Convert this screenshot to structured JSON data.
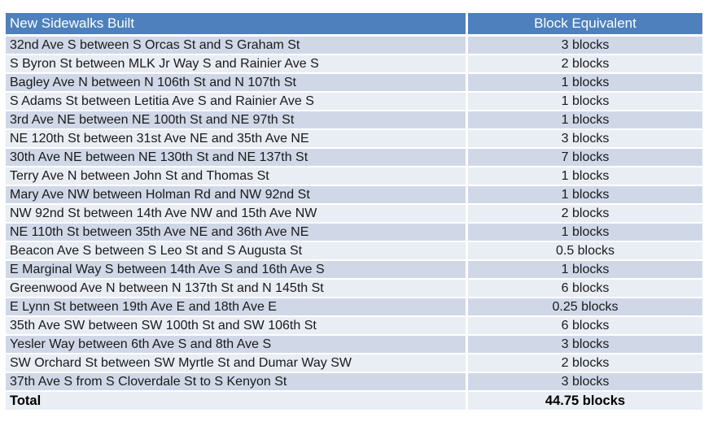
{
  "colors": {
    "header_bg": "#4D80BC",
    "row_odd_bg": "#D0D8E8",
    "row_even_bg": "#E9EDF4",
    "header_text": "#FFFFFF",
    "body_text": "#1A1A1A"
  },
  "chart_data": {
    "type": "table",
    "columns": [
      "New Sidewalks Built",
      "Block Equivalent"
    ],
    "rows": [
      [
        "32nd Ave S between S Orcas St and S Graham St",
        "3 blocks"
      ],
      [
        "S Byron St between MLK Jr Way S and Rainier Ave S",
        "2 blocks"
      ],
      [
        "Bagley Ave N between N 106th St and N 107th St",
        "1 blocks"
      ],
      [
        "S Adams St between Letitia Ave S and Rainier Ave S",
        "1 blocks"
      ],
      [
        "3rd Ave NE between NE 100th St and NE 97th St",
        "1 blocks"
      ],
      [
        "NE 120th St between 31st Ave NE and 35th Ave NE",
        "3 blocks"
      ],
      [
        "30th Ave NE between NE 130th St and NE 137th St",
        "7 blocks"
      ],
      [
        "Terry Ave N between John St and Thomas St",
        "1 blocks"
      ],
      [
        "Mary Ave NW between Holman Rd and NW 92nd St",
        "1 blocks"
      ],
      [
        "NW 92nd St between 14th Ave NW and 15th Ave NW",
        "2 blocks"
      ],
      [
        "NE 110th St between 35th Ave NE and 36th Ave NE",
        "1 blocks"
      ],
      [
        "Beacon Ave S between S Leo St and S Augusta St",
        "0.5 blocks"
      ],
      [
        "E Marginal Way S between 14th Ave S and 16th Ave S",
        "1 blocks"
      ],
      [
        "Greenwood Ave N between N 137th St and N 145th St",
        "6 blocks"
      ],
      [
        "E Lynn St between 19th Ave E and 18th Ave E",
        "0.25 blocks"
      ],
      [
        "35th Ave SW between SW 100th St and SW 106th St",
        "6 blocks"
      ],
      [
        "Yesler Way between 6th Ave S and 8th Ave S",
        "3 blocks"
      ],
      [
        "SW Orchard St between SW Myrtle St and Dumar Way SW",
        "2 blocks"
      ],
      [
        "37th Ave S from S Cloverdale St to S Kenyon St",
        "3 blocks"
      ]
    ],
    "total_row": [
      "Total",
      "44.75 blocks"
    ],
    "block_values_numeric": [
      3,
      2,
      1,
      1,
      1,
      3,
      7,
      1,
      1,
      2,
      1,
      0.5,
      1,
      6,
      0.25,
      6,
      3,
      2,
      3
    ],
    "total_numeric": 44.75
  }
}
